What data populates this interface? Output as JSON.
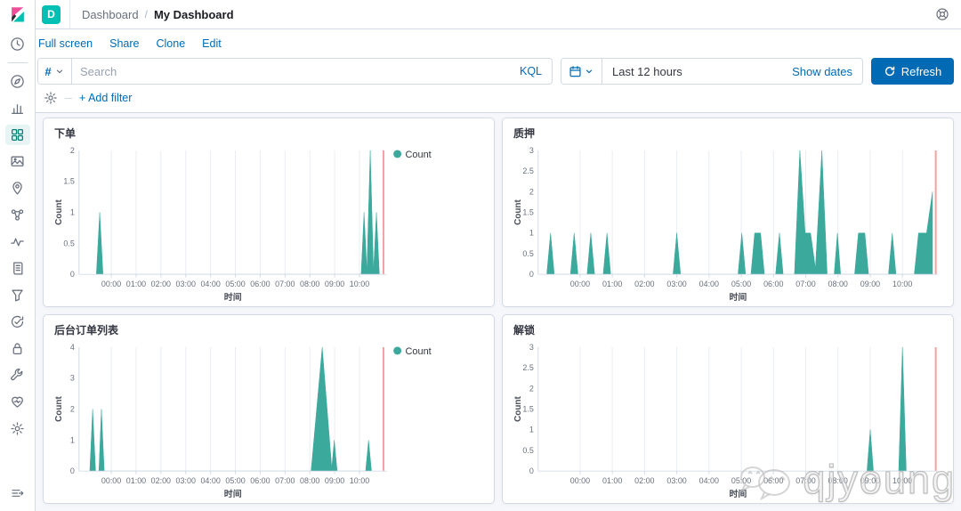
{
  "header": {
    "space_badge": "D",
    "breadcrumb": {
      "root": "Dashboard",
      "separator": "/",
      "current": "My Dashboard"
    }
  },
  "toolbar": {
    "nav_links": [
      "Full screen",
      "Share",
      "Clone",
      "Edit"
    ],
    "search": {
      "prefix": "#",
      "placeholder": "Search",
      "value": "",
      "language": "KQL"
    },
    "time_picker": {
      "range": "Last 12 hours",
      "show_dates_label": "Show dates"
    },
    "refresh_label": "Refresh",
    "add_filter_label": "+ Add filter"
  },
  "sidebar": {
    "items": [
      {
        "icon": "clock",
        "name": "recently-viewed"
      },
      {
        "icon": "divider",
        "name": "divider"
      },
      {
        "icon": "compass",
        "name": "discover"
      },
      {
        "icon": "visualize",
        "name": "visualize"
      },
      {
        "icon": "dashboard",
        "name": "dashboard",
        "active": true
      },
      {
        "icon": "canvas",
        "name": "canvas"
      },
      {
        "icon": "maps",
        "name": "maps"
      },
      {
        "icon": "ml",
        "name": "machine-learning"
      },
      {
        "icon": "metrics",
        "name": "metrics"
      },
      {
        "icon": "logs",
        "name": "logs"
      },
      {
        "icon": "apm",
        "name": "apm"
      },
      {
        "icon": "uptime",
        "name": "uptime"
      },
      {
        "icon": "lock",
        "name": "siem"
      },
      {
        "icon": "wrench",
        "name": "dev-tools"
      },
      {
        "icon": "heart",
        "name": "stack-monitoring"
      },
      {
        "icon": "gear",
        "name": "management"
      }
    ]
  },
  "colors": {
    "accent_blue": "#006bb4",
    "brand_teal": "#00bfb3",
    "series_teal": "#3ba99c",
    "time_marker_red": "#f2a3a0",
    "grid_line": "#e9edf2",
    "axis_line": "#d3dae6",
    "tick_text": "#69707d",
    "page_bg": "#f5f7fa"
  },
  "watermark": {
    "text": "qjyoung"
  },
  "chart_data": [
    {
      "type": "area",
      "title": "下单",
      "ylabel": "Count",
      "xlabel": "时间",
      "legend": [
        "Count"
      ],
      "legend_visible": true,
      "series_color": "#3ba99c",
      "marker_color": "#f2a3a0",
      "ylim": [
        0,
        2
      ],
      "yticks": [
        0,
        0.5,
        1,
        1.5,
        2
      ],
      "xticks": [
        "00:00",
        "01:00",
        "02:00",
        "03:00",
        "04:00",
        "05:00",
        "06:00",
        "07:00",
        "08:00",
        "09:00",
        "10:00"
      ],
      "xtick_minutes": [
        0,
        60,
        120,
        180,
        240,
        300,
        360,
        420,
        480,
        540,
        600
      ],
      "x_domain_minutes": [
        -78,
        666
      ],
      "current_time_marker_minute": 658,
      "points_minute_count": [
        [
          -36,
          0
        ],
        [
          -28,
          1
        ],
        [
          -20,
          0
        ],
        [
          604,
          0
        ],
        [
          611,
          1
        ],
        [
          618,
          0.05
        ],
        [
          626,
          2
        ],
        [
          634,
          0.05
        ],
        [
          641,
          1
        ],
        [
          648,
          0
        ]
      ]
    },
    {
      "type": "area",
      "title": "质押",
      "ylabel": "Count",
      "xlabel": "时间",
      "legend": [
        "Count"
      ],
      "legend_visible": false,
      "series_color": "#3ba99c",
      "marker_color": "#f2a3a0",
      "ylim": [
        0,
        3
      ],
      "yticks": [
        0,
        0.5,
        1,
        1.5,
        2,
        2.5,
        3
      ],
      "xticks": [
        "00:00",
        "01:00",
        "02:00",
        "03:00",
        "04:00",
        "05:00",
        "06:00",
        "07:00",
        "08:00",
        "09:00",
        "10:00"
      ],
      "xtick_minutes": [
        0,
        60,
        120,
        180,
        240,
        300,
        360,
        420,
        480,
        540,
        600
      ],
      "x_domain_minutes": [
        -78,
        666
      ],
      "current_time_marker_minute": 662,
      "points_minute_count": [
        [
          -62,
          0
        ],
        [
          -55,
          1
        ],
        [
          -48,
          0
        ],
        [
          -18,
          0
        ],
        [
          -11,
          1
        ],
        [
          -4,
          0
        ],
        [
          13,
          0
        ],
        [
          20,
          1
        ],
        [
          27,
          0
        ],
        [
          43,
          0
        ],
        [
          50,
          1
        ],
        [
          57,
          0
        ],
        [
          173,
          0
        ],
        [
          180,
          1
        ],
        [
          187,
          0
        ],
        [
          294,
          0
        ],
        [
          301,
          1
        ],
        [
          308,
          0
        ],
        [
          318,
          0
        ],
        [
          325,
          1
        ],
        [
          336,
          1
        ],
        [
          343,
          0
        ],
        [
          364,
          0
        ],
        [
          371,
          1
        ],
        [
          378,
          0
        ],
        [
          399,
          0
        ],
        [
          409,
          3
        ],
        [
          419,
          1
        ],
        [
          429,
          1
        ],
        [
          438,
          0.15
        ],
        [
          450,
          3
        ],
        [
          460,
          0
        ],
        [
          473,
          0
        ],
        [
          479,
          1
        ],
        [
          485,
          0
        ],
        [
          511,
          0
        ],
        [
          518,
          1
        ],
        [
          530,
          1
        ],
        [
          537,
          0
        ],
        [
          574,
          0
        ],
        [
          581,
          1
        ],
        [
          588,
          0
        ],
        [
          622,
          0
        ],
        [
          630,
          1
        ],
        [
          645,
          1
        ],
        [
          656,
          2
        ]
      ]
    },
    {
      "type": "area",
      "title": "后台订单列表",
      "ylabel": "Count",
      "xlabel": "时间",
      "legend": [
        "Count"
      ],
      "legend_visible": true,
      "series_color": "#3ba99c",
      "marker_color": "#f2a3a0",
      "ylim": [
        0,
        4
      ],
      "yticks": [
        0,
        1,
        2,
        3,
        4
      ],
      "xticks": [
        "00:00",
        "01:00",
        "02:00",
        "03:00",
        "04:00",
        "05:00",
        "06:00",
        "07:00",
        "08:00",
        "09:00",
        "10:00"
      ],
      "xtick_minutes": [
        0,
        60,
        120,
        180,
        240,
        300,
        360,
        420,
        480,
        540,
        600
      ],
      "x_domain_minutes": [
        -78,
        666
      ],
      "current_time_marker_minute": 658,
      "points_minute_count": [
        [
          -52,
          0
        ],
        [
          -45,
          2
        ],
        [
          -38,
          0
        ],
        [
          -30,
          0
        ],
        [
          -24,
          2
        ],
        [
          -17,
          0
        ],
        [
          483,
          0
        ],
        [
          510,
          4
        ],
        [
          533,
          0.1
        ],
        [
          539,
          1
        ],
        [
          546,
          0
        ],
        [
          615,
          0
        ],
        [
          622,
          1
        ],
        [
          629,
          0
        ]
      ]
    },
    {
      "type": "area",
      "title": "解锁",
      "ylabel": "Count",
      "xlabel": "时间",
      "legend": [
        "Count"
      ],
      "legend_visible": false,
      "series_color": "#3ba99c",
      "marker_color": "#f2a3a0",
      "ylim": [
        0,
        3
      ],
      "yticks": [
        0,
        0.5,
        1,
        1.5,
        2,
        2.5,
        3
      ],
      "xticks": [
        "00:00",
        "01:00",
        "02:00",
        "03:00",
        "04:00",
        "05:00",
        "06:00",
        "07:00",
        "08:00",
        "09:00",
        "10:00"
      ],
      "xtick_minutes": [
        0,
        60,
        120,
        180,
        240,
        300,
        360,
        420,
        480,
        540,
        600
      ],
      "x_domain_minutes": [
        -78,
        666
      ],
      "current_time_marker_minute": 662,
      "points_minute_count": [
        [
          534,
          0
        ],
        [
          540,
          1
        ],
        [
          546,
          0
        ],
        [
          593,
          0
        ],
        [
          600,
          3
        ],
        [
          607,
          0
        ]
      ]
    }
  ]
}
